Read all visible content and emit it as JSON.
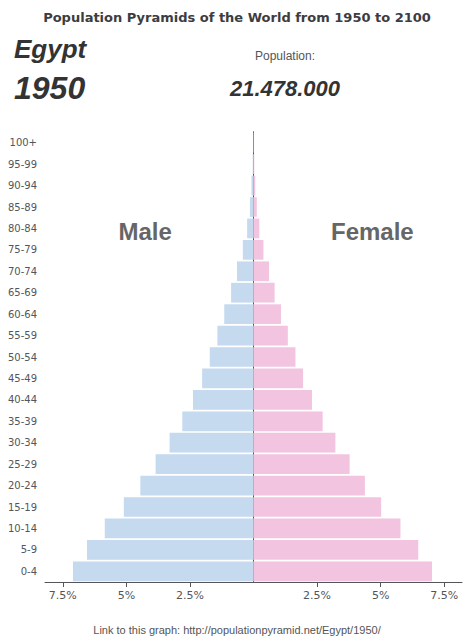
{
  "chart_data": {
    "type": "bar",
    "orientation": "horizontal",
    "title": "Population Pyramids of the World from 1950 to 2100",
    "annotations": [
      "Egypt",
      "1950",
      "Population:",
      "21.478.000",
      "Link to this graph: http://populationpyramid.net/Egypt/1950/"
    ],
    "categories": [
      "0-4",
      "5-9",
      "10-14",
      "15-19",
      "20-24",
      "25-29",
      "30-34",
      "35-39",
      "40-44",
      "45-49",
      "50-54",
      "55-59",
      "60-64",
      "65-69",
      "70-74",
      "75-79",
      "80-84",
      "85-89",
      "90-94",
      "95-99",
      "100+"
    ],
    "series": [
      {
        "name": "Male",
        "color": "#c5d9ef",
        "values": [
          7.1,
          6.55,
          5.85,
          5.1,
          4.45,
          3.85,
          3.3,
          2.8,
          2.38,
          2.02,
          1.72,
          1.42,
          1.15,
          0.88,
          0.65,
          0.42,
          0.25,
          0.14,
          0.08,
          0.03,
          0.01
        ]
      },
      {
        "name": "Female",
        "color": "#f2c4e0",
        "values": [
          7.02,
          6.48,
          5.78,
          5.02,
          4.38,
          3.78,
          3.22,
          2.72,
          2.3,
          1.95,
          1.65,
          1.35,
          1.08,
          0.83,
          0.61,
          0.39,
          0.23,
          0.13,
          0.07,
          0.03,
          0.01
        ]
      }
    ],
    "xlim": [
      0,
      8.2
    ],
    "xticks": [
      {
        "value": 2.5,
        "label": "2.5%"
      },
      {
        "value": 5,
        "label": "5%"
      },
      {
        "value": 7.5,
        "label": "7.5%"
      }
    ],
    "grid": false
  }
}
